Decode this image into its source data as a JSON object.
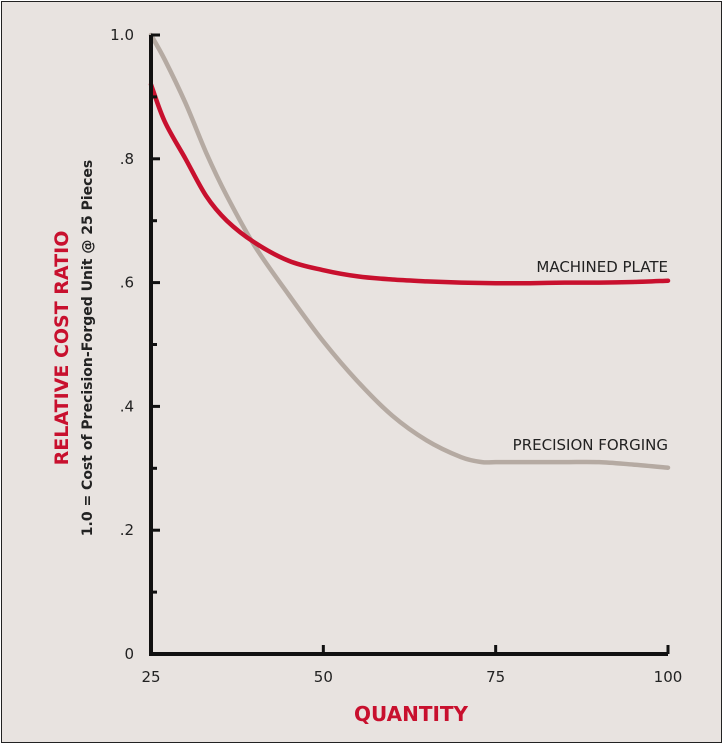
{
  "chart_data": {
    "type": "line",
    "xlabel": "QUANTITY",
    "ylabel": "RELATIVE COST RATIO",
    "ylabel_sub": "1.0 = Cost of Precision-Forged Unit @ 25 Pieces",
    "xlim": [
      25,
      100
    ],
    "ylim": [
      0,
      1.0
    ],
    "x_ticks": [
      25,
      50,
      75,
      100
    ],
    "x_tick_labels": [
      "25",
      "50",
      "75",
      "100"
    ],
    "y_ticks": [
      0,
      0.2,
      0.4,
      0.6,
      0.8,
      1.0
    ],
    "y_tick_labels": [
      "0",
      ".2",
      ".4",
      ".6",
      ".8",
      "1.0"
    ],
    "grid": false,
    "series": [
      {
        "name": "MACHINED PLATE",
        "color": "#c8102e",
        "x": [
          25,
          27,
          30,
          33,
          36,
          40,
          45,
          50,
          55,
          60,
          65,
          70,
          75,
          80,
          85,
          90,
          95,
          100
        ],
        "y": [
          0.92,
          0.86,
          0.8,
          0.74,
          0.7,
          0.665,
          0.635,
          0.62,
          0.61,
          0.605,
          0.602,
          0.6,
          0.599,
          0.599,
          0.6,
          0.6,
          0.601,
          0.603
        ]
      },
      {
        "name": "PRECISION FORGING",
        "color": "#b5aaa2",
        "x": [
          25,
          27,
          30,
          33,
          36,
          40,
          45,
          50,
          55,
          60,
          65,
          70,
          73,
          75,
          80,
          85,
          90,
          95,
          100
        ],
        "y": [
          1.0,
          0.96,
          0.89,
          0.81,
          0.74,
          0.66,
          0.58,
          0.505,
          0.44,
          0.385,
          0.345,
          0.318,
          0.31,
          0.31,
          0.31,
          0.31,
          0.31,
          0.306,
          0.301
        ]
      }
    ]
  }
}
